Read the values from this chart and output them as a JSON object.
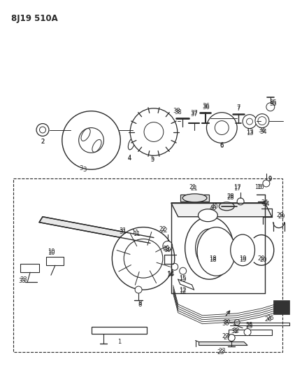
{
  "title": "8J19 510A",
  "bg_color": "#ffffff",
  "line_color": "#2a2a2a",
  "title_fontsize": 8.5,
  "label_fontsize": 6.0,
  "fig_width": 4.22,
  "fig_height": 5.33,
  "dpi": 100
}
